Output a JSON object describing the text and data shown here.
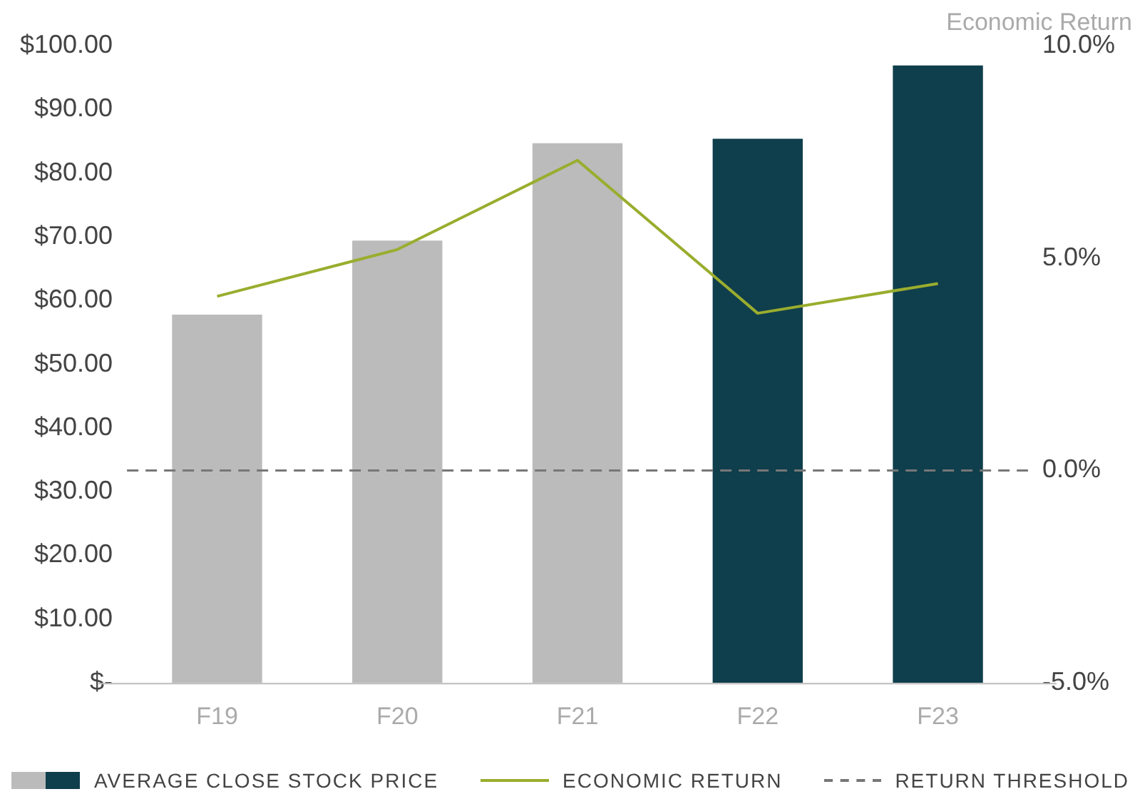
{
  "chart_data": {
    "type": "bar",
    "categories": [
      "F19",
      "F20",
      "F21",
      "F22",
      "F23"
    ],
    "series": [
      {
        "name": "AVERAGE CLOSE STOCK PRICE",
        "colors": [
          "#bbbbbb",
          "#bbbbbb",
          "#bbbbbb",
          "#0f3e4c",
          "#0f3e4c"
        ],
        "values": [
          57.8,
          69.4,
          84.7,
          85.4,
          96.9
        ]
      },
      {
        "type": "line",
        "name": "ECONOMIC RETURN",
        "color": "#9aad2e",
        "axis": "y2",
        "values": [
          4.1,
          5.2,
          7.3,
          3.7,
          4.4
        ]
      }
    ],
    "ylim": [
      0,
      100
    ],
    "yticks": [
      {
        "value": 0,
        "label": "$-"
      },
      {
        "value": 10,
        "label": "$10.00"
      },
      {
        "value": 20,
        "label": "$20.00"
      },
      {
        "value": 30,
        "label": "$30.00"
      },
      {
        "value": 40,
        "label": "$40.00"
      },
      {
        "value": 50,
        "label": "$50.00"
      },
      {
        "value": 60,
        "label": "$60.00"
      },
      {
        "value": 70,
        "label": "$70.00"
      },
      {
        "value": 80,
        "label": "$80.00"
      },
      {
        "value": 90,
        "label": "$90.00"
      },
      {
        "value": 100,
        "label": "$100.00"
      }
    ],
    "y2label": "Economic Return",
    "y2lim": [
      -5,
      10
    ],
    "y2ticks": [
      {
        "value": -5,
        "label": "-5.0%"
      },
      {
        "value": 0,
        "label": "0.0%"
      },
      {
        "value": 5,
        "label": "5.0%"
      },
      {
        "value": 10,
        "label": "10.0%"
      }
    ],
    "ref_lines": [
      {
        "axis": "y2",
        "value": 0,
        "label": "RETURN THRESHOLD",
        "color": "#777777",
        "line_style": "dashed"
      }
    ],
    "grid": false,
    "legend": "bottom",
    "marker": "none"
  }
}
